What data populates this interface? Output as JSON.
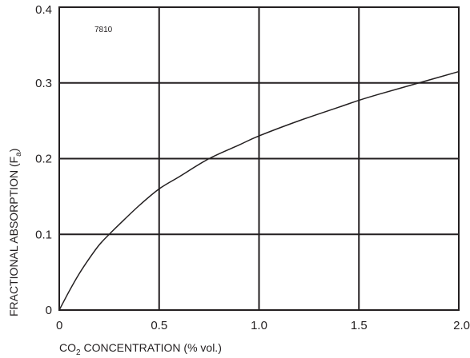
{
  "chart_data": {
    "type": "line",
    "annotation": "7810",
    "xlabel": {
      "prefix": "CO",
      "sub": "2",
      "suffix": " CONCENTRATION (% vol.)"
    },
    "ylabel": {
      "prefix": "FRACTIONAL  ABSORPTION (F",
      "sub": "a",
      "suffix": ")"
    },
    "xlim": [
      0,
      2.0
    ],
    "ylim": [
      0,
      0.4
    ],
    "x_ticks": [
      0,
      0.5,
      1.0,
      1.5,
      2.0
    ],
    "x_tick_labels": [
      "0",
      "0.5",
      "1.0",
      "1.5",
      "2.0"
    ],
    "y_ticks": [
      0,
      0.1,
      0.2,
      0.3,
      0.4
    ],
    "y_tick_labels": [
      "0",
      "0.1",
      "0.2",
      "0.3",
      "0.4"
    ],
    "grid": true,
    "series": [
      {
        "color": "#231f20",
        "x": [
          0,
          0.05,
          0.1,
          0.15,
          0.2,
          0.25,
          0.3,
          0.4,
          0.5,
          0.6,
          0.75,
          0.9,
          1.0,
          1.2,
          1.4,
          1.5,
          1.6,
          1.8,
          2.0
        ],
        "y": [
          0,
          0.025,
          0.048,
          0.068,
          0.086,
          0.1,
          0.113,
          0.138,
          0.16,
          0.176,
          0.2,
          0.218,
          0.23,
          0.25,
          0.268,
          0.277,
          0.285,
          0.3,
          0.315
        ]
      }
    ]
  }
}
